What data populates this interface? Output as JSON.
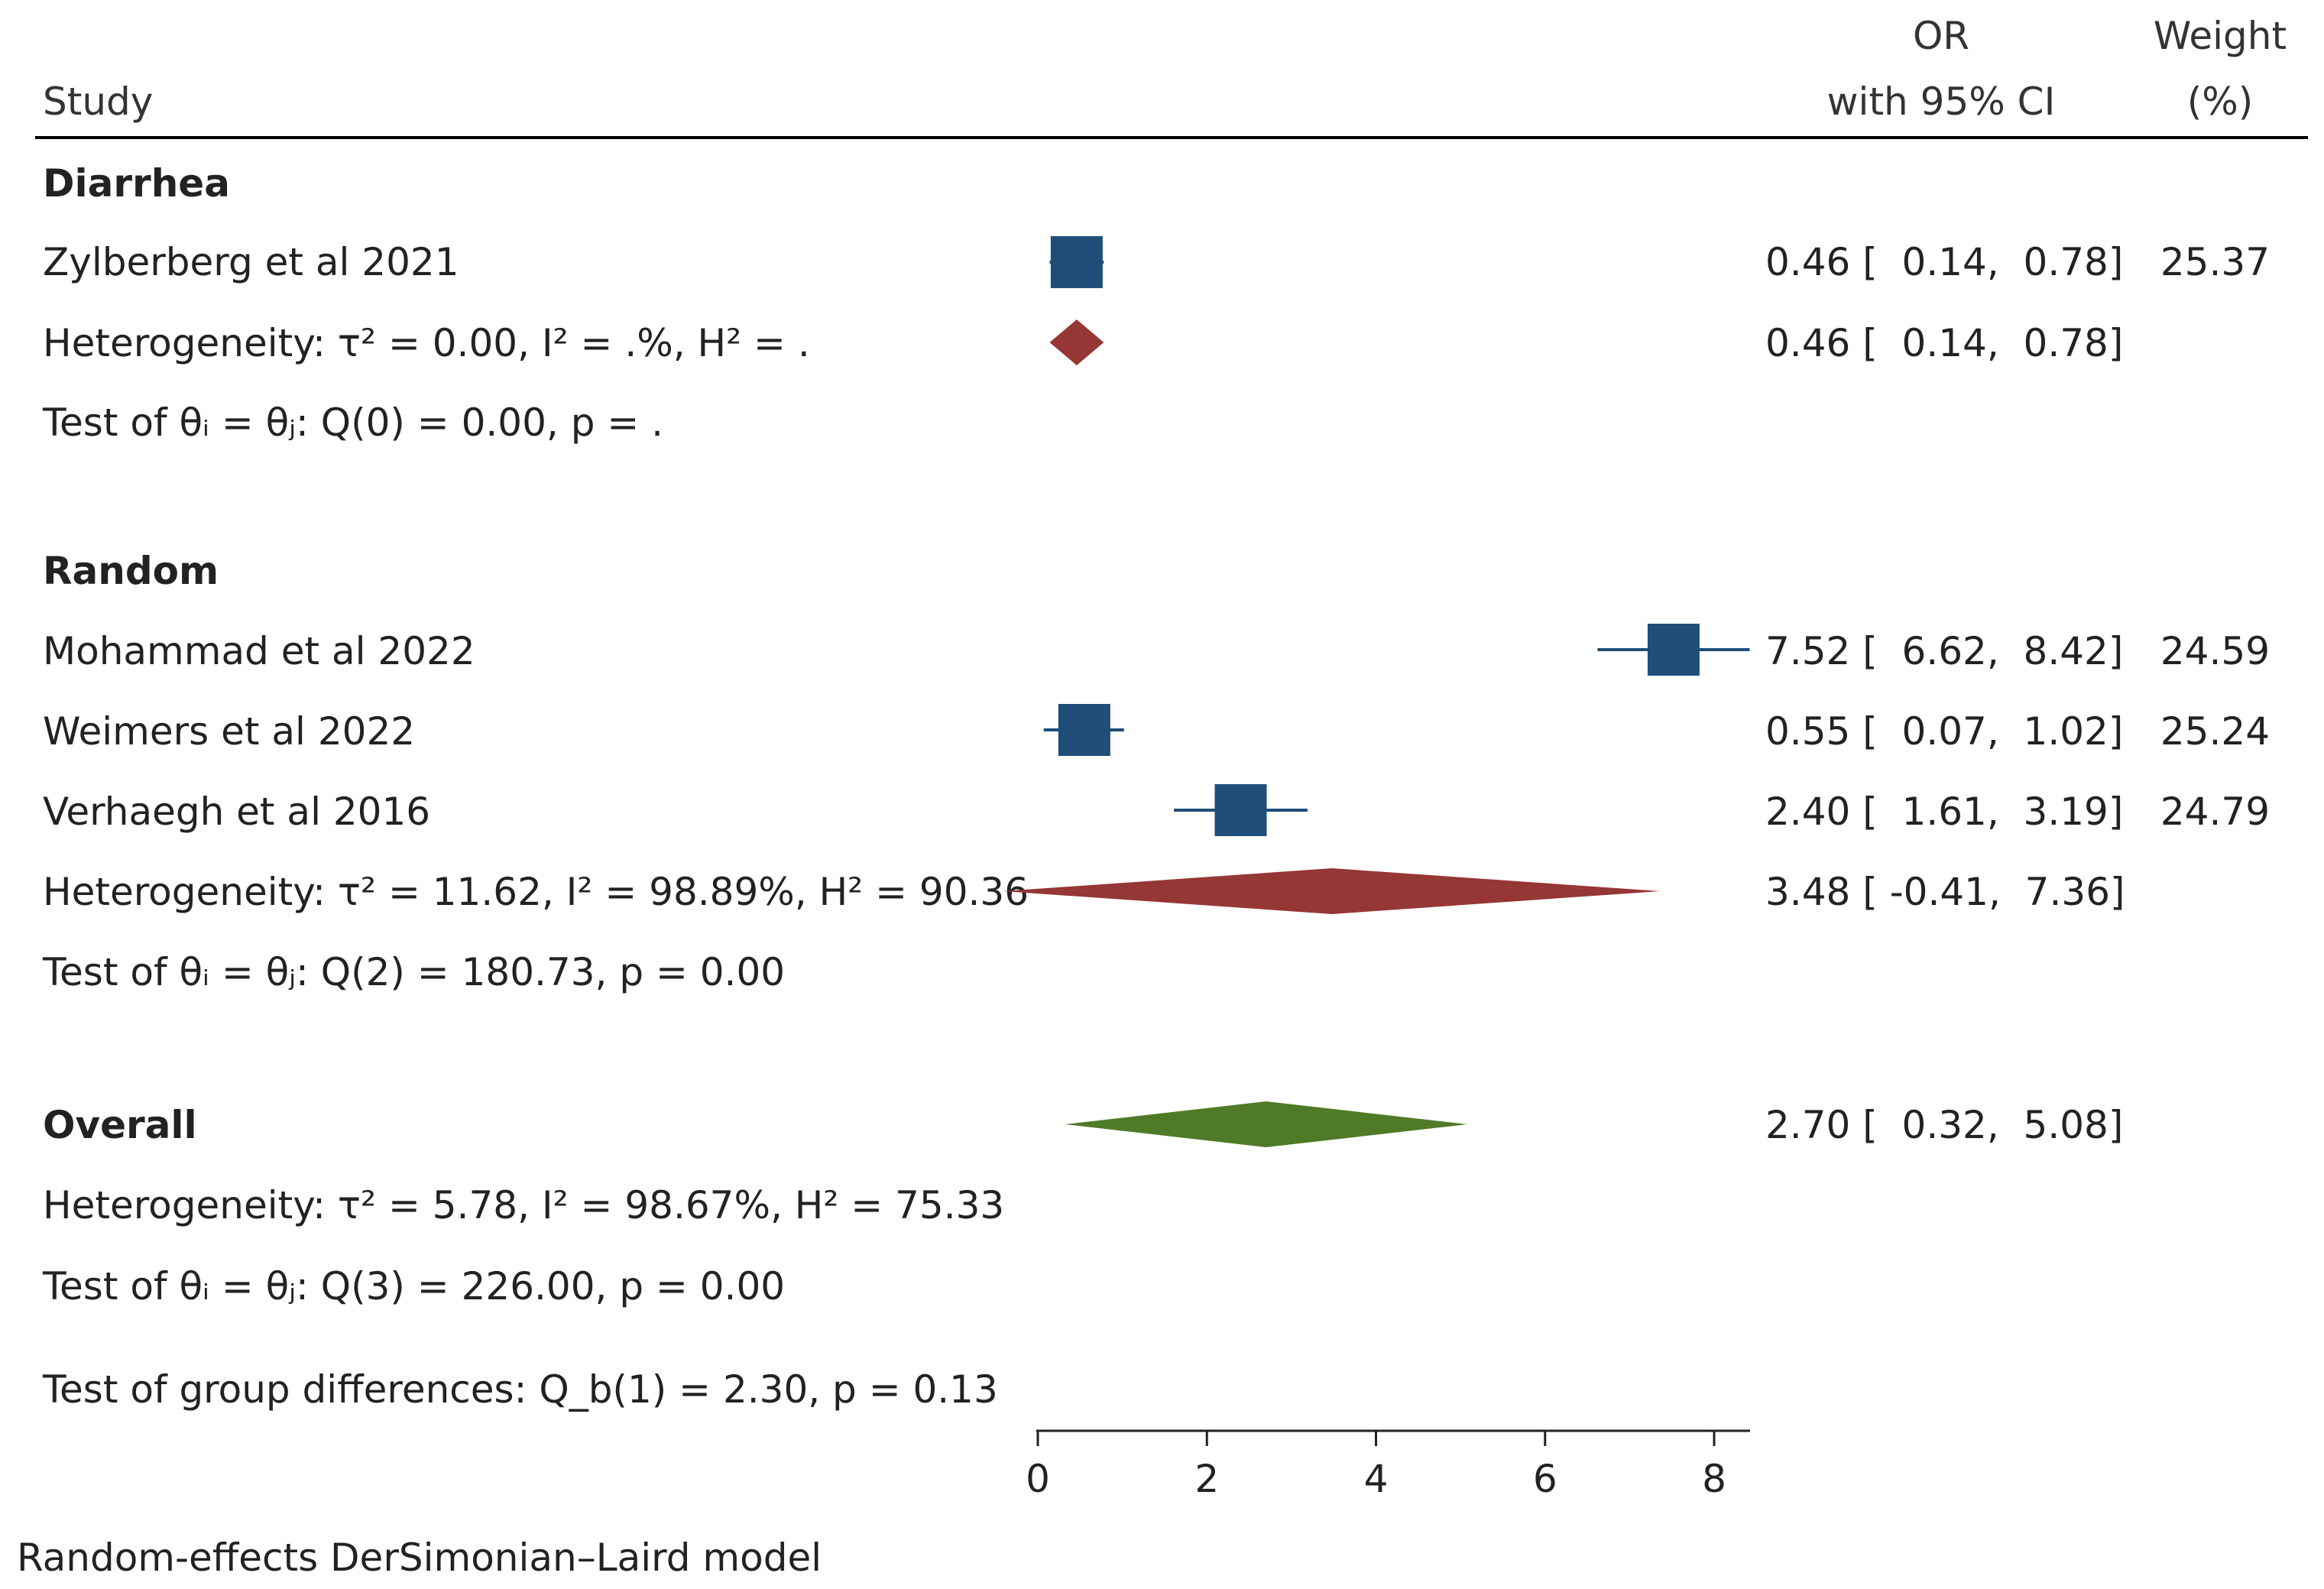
{
  "headers": {
    "study": "Study",
    "or_line1": "OR",
    "or_line2": "with 95% CI",
    "weight_line1": "Weight",
    "weight_line2": "(%)"
  },
  "groups": {
    "diarrhea": {
      "label": "Diarrhea",
      "studies": [
        {
          "name": "Zylberberg et al 2021",
          "or": 0.46,
          "lo": 0.14,
          "hi": 0.78,
          "or_text": "0.46 [  0.14,  0.78]",
          "weight": "25.37"
        }
      ],
      "heterogeneity": "Heterogeneity: τ² = 0.00, I² = .%, H² = .",
      "summary": {
        "or": 0.46,
        "lo": 0.14,
        "hi": 0.78,
        "or_text": "0.46 [  0.14,  0.78]"
      },
      "test": "Test of θᵢ = θⱼ: Q(0) = 0.00, p = ."
    },
    "random": {
      "label": "Random",
      "studies": [
        {
          "name": "Mohammad et al 2022",
          "or": 7.52,
          "lo": 6.62,
          "hi": 8.42,
          "or_text": "7.52 [  6.62,  8.42]",
          "weight": "24.59"
        },
        {
          "name": "Weimers et al 2022",
          "or": 0.55,
          "lo": 0.07,
          "hi": 1.02,
          "or_text": "0.55 [  0.07,  1.02]",
          "weight": "25.24"
        },
        {
          "name": "Verhaegh et al 2016",
          "or": 2.4,
          "lo": 1.61,
          "hi": 3.19,
          "or_text": "2.40 [  1.61,  3.19]",
          "weight": "24.79"
        }
      ],
      "heterogeneity": "Heterogeneity: τ² = 11.62, I² = 98.89%, H² = 90.36",
      "summary": {
        "or": 3.48,
        "lo": -0.41,
        "hi": 7.36,
        "or_text": "3.48 [ -0.41,  7.36]"
      },
      "test": "Test of θᵢ = θⱼ: Q(2) = 180.73, p = 0.00"
    }
  },
  "overall": {
    "label": "Overall",
    "summary": {
      "or": 2.7,
      "lo": 0.32,
      "hi": 5.08,
      "or_text": "2.70 [  0.32,  5.08]"
    },
    "heterogeneity": "Heterogeneity: τ² = 5.78, I² = 98.67%, H² = 75.33",
    "test": "Test of θᵢ = θⱼ: Q(3) = 226.00, p = 0.00"
  },
  "group_test": "Test of group differences: Q_b(1) = 2.30, p = 0.13",
  "footnote": "Random-effects DerSimonian–Laird model",
  "colors": {
    "study_box": "#1f4e79",
    "subgroup_diamond": "#953735",
    "overall_diamond": "#4f7a28",
    "line": "#000000"
  },
  "chart_data": {
    "type": "forest",
    "title": "",
    "xlabel": "",
    "xlim": [
      -0.41,
      8.42
    ],
    "xticks": [
      0,
      2,
      4,
      6,
      8
    ],
    "tick_labels": [
      "0",
      "2",
      "4",
      "6",
      "8"
    ],
    "series": [
      {
        "name": "Zylberberg et al 2021",
        "group": "Diarrhea",
        "or": 0.46,
        "lo": 0.14,
        "hi": 0.78,
        "weight": 25.37
      },
      {
        "name": "Mohammad et al 2022",
        "group": "Random",
        "or": 7.52,
        "lo": 6.62,
        "hi": 8.42,
        "weight": 24.59
      },
      {
        "name": "Weimers et al 2022",
        "group": "Random",
        "or": 0.55,
        "lo": 0.07,
        "hi": 1.02,
        "weight": 25.24
      },
      {
        "name": "Verhaegh et al 2016",
        "group": "Random",
        "or": 2.4,
        "lo": 1.61,
        "hi": 3.19,
        "weight": 24.79
      }
    ],
    "subgroup_summaries": [
      {
        "group": "Diarrhea",
        "or": 0.46,
        "lo": 0.14,
        "hi": 0.78
      },
      {
        "group": "Random",
        "or": 3.48,
        "lo": -0.41,
        "hi": 7.36
      }
    ],
    "overall": {
      "or": 2.7,
      "lo": 0.32,
      "hi": 5.08
    }
  }
}
